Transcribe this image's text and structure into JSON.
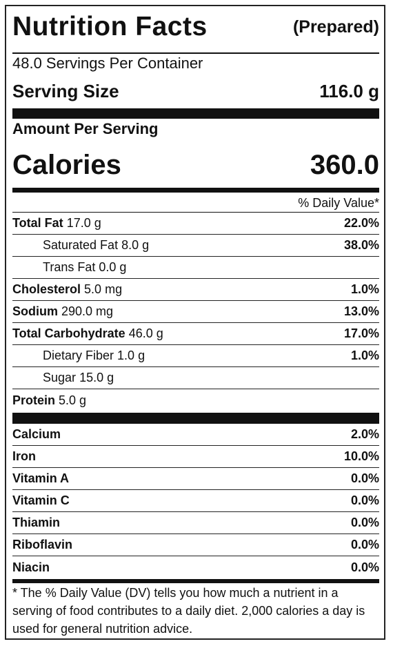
{
  "label": {
    "title": "Nutrition Facts",
    "subtitle": "(Prepared)",
    "servings_per_container": "48.0 Servings Per Container",
    "serving_size": {
      "label": "Serving Size",
      "value": "116.0 g"
    },
    "amount_per_serving": "Amount Per Serving",
    "calories": {
      "label": "Calories",
      "value": "360.0"
    },
    "daily_value_header": "% Daily Value*",
    "nutrients": [
      {
        "name": "Total Fat",
        "amount": "17.0 g",
        "dv": "22.0%"
      },
      {
        "name": "Saturated Fat",
        "amount": "8.0 g",
        "dv": "38.0%"
      },
      {
        "name": "Trans Fat",
        "amount": "0.0 g"
      },
      {
        "name": "Cholesterol",
        "amount": "5.0 mg",
        "dv": "1.0%"
      },
      {
        "name": "Sodium",
        "amount": "290.0 mg",
        "dv": "13.0%"
      },
      {
        "name": "Total Carbohydrate",
        "amount": "46.0 g",
        "dv": "17.0%"
      },
      {
        "name": "Dietary Fiber",
        "amount": "1.0 g",
        "dv": "1.0%"
      },
      {
        "name": "Sugar",
        "amount": "15.0 g"
      },
      {
        "name": "Protein",
        "amount": "5.0 g"
      }
    ],
    "vitamins": [
      {
        "name": "Calcium",
        "dv": "2.0%"
      },
      {
        "name": "Iron",
        "dv": "10.0%"
      },
      {
        "name": "Vitamin A",
        "dv": "0.0%"
      },
      {
        "name": "Vitamin C",
        "dv": "0.0%"
      },
      {
        "name": "Thiamin",
        "dv": "0.0%"
      },
      {
        "name": "Riboflavin",
        "dv": "0.0%"
      },
      {
        "name": "Niacin",
        "dv": "0.0%"
      }
    ],
    "footnote": "* The % Daily Value (DV) tells you how much a nutrient in a serving of food contributes to a daily diet. 2,000 calories a day is used for general nutrition advice."
  }
}
